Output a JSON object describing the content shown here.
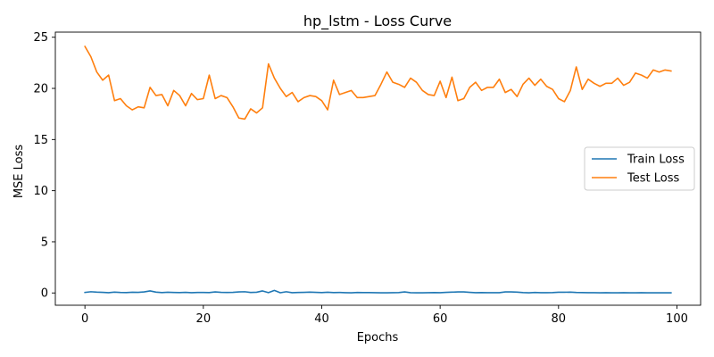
{
  "chart_data": {
    "type": "line",
    "title": "hp_lstm - Loss Curve",
    "xlabel": "Epochs",
    "ylabel": "MSE Loss",
    "xlim": [
      -5,
      104
    ],
    "ylim": [
      -1.2,
      25.5
    ],
    "xticks": [
      0,
      20,
      40,
      60,
      80,
      100
    ],
    "yticks": [
      0,
      5,
      10,
      15,
      20,
      25
    ],
    "grid": false,
    "legend_position": "center-right",
    "x": [
      0,
      1,
      2,
      3,
      4,
      5,
      6,
      7,
      8,
      9,
      10,
      11,
      12,
      13,
      14,
      15,
      16,
      17,
      18,
      19,
      20,
      21,
      22,
      23,
      24,
      25,
      26,
      27,
      28,
      29,
      30,
      31,
      32,
      33,
      34,
      35,
      36,
      37,
      38,
      39,
      40,
      41,
      42,
      43,
      44,
      45,
      46,
      47,
      48,
      49,
      50,
      51,
      52,
      53,
      54,
      55,
      56,
      57,
      58,
      59,
      60,
      61,
      62,
      63,
      64,
      65,
      66,
      67,
      68,
      69,
      70,
      71,
      72,
      73,
      74,
      75,
      76,
      77,
      78,
      79,
      80,
      81,
      82,
      83,
      84,
      85,
      86,
      87,
      88,
      89,
      90,
      91,
      92,
      93,
      94,
      95,
      96,
      97,
      98,
      99
    ],
    "series": [
      {
        "name": "Train Loss",
        "color": "#1f77b4",
        "values": [
          0.05,
          0.12,
          0.08,
          0.06,
          0.03,
          0.08,
          0.05,
          0.04,
          0.07,
          0.06,
          0.1,
          0.2,
          0.08,
          0.04,
          0.07,
          0.05,
          0.04,
          0.06,
          0.03,
          0.05,
          0.05,
          0.04,
          0.1,
          0.06,
          0.05,
          0.06,
          0.1,
          0.12,
          0.05,
          0.07,
          0.2,
          0.03,
          0.25,
          0.02,
          0.12,
          0.03,
          0.05,
          0.06,
          0.08,
          0.06,
          0.04,
          0.07,
          0.04,
          0.05,
          0.03,
          0.02,
          0.05,
          0.04,
          0.04,
          0.03,
          0.02,
          0.02,
          0.03,
          0.04,
          0.1,
          0.03,
          0.02,
          0.02,
          0.03,
          0.04,
          0.03,
          0.06,
          0.08,
          0.1,
          0.1,
          0.06,
          0.03,
          0.04,
          0.03,
          0.03,
          0.03,
          0.1,
          0.1,
          0.08,
          0.04,
          0.02,
          0.05,
          0.03,
          0.03,
          0.04,
          0.07,
          0.07,
          0.08,
          0.05,
          0.04,
          0.03,
          0.03,
          0.02,
          0.03,
          0.02,
          0.02,
          0.03,
          0.02,
          0.02,
          0.03,
          0.02,
          0.02,
          0.02,
          0.02,
          0.02
        ]
      },
      {
        "name": "Test Loss",
        "color": "#ff7f0e",
        "values": [
          24.1,
          23.1,
          21.6,
          20.8,
          21.3,
          18.8,
          19.0,
          18.3,
          17.9,
          18.2,
          18.1,
          20.1,
          19.3,
          19.4,
          18.3,
          19.8,
          19.3,
          18.3,
          19.5,
          18.9,
          19.0,
          21.3,
          19.0,
          19.3,
          19.1,
          18.2,
          17.1,
          17.0,
          18.0,
          17.6,
          18.1,
          22.4,
          21.0,
          20.0,
          19.2,
          19.6,
          18.7,
          19.1,
          19.3,
          19.2,
          18.8,
          17.9,
          20.8,
          19.4,
          19.6,
          19.8,
          19.1,
          19.1,
          19.2,
          19.3,
          20.4,
          21.6,
          20.6,
          20.4,
          20.1,
          21.0,
          20.6,
          19.8,
          19.4,
          19.3,
          20.7,
          19.1,
          21.1,
          18.8,
          19.0,
          20.1,
          20.6,
          19.8,
          20.1,
          20.1,
          20.9,
          19.6,
          19.9,
          19.2,
          20.4,
          21.0,
          20.3,
          20.9,
          20.2,
          19.9,
          19.0,
          18.7,
          19.8,
          22.1,
          19.9,
          20.9,
          20.5,
          20.2,
          20.5,
          20.5,
          21.0,
          20.3,
          20.6,
          21.5,
          21.3,
          21.0,
          21.8,
          21.6,
          21.8,
          21.7
        ]
      }
    ]
  }
}
